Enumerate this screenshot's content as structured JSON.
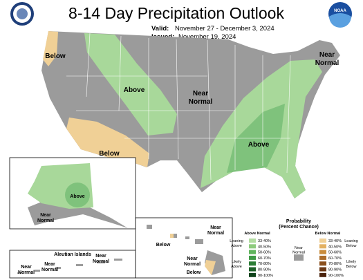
{
  "header": {
    "title": "8-14 Day Precipitation Outlook",
    "valid_label": "Valid:",
    "valid": "November 27 - December 3, 2024",
    "issued_label": "Issued:",
    "issued": "November 19, 2024",
    "logo_right": "NOAA"
  },
  "conus": {
    "labels": [
      {
        "lines": [
          "Below"
        ]
      },
      {
        "lines": [
          "Above"
        ]
      },
      {
        "lines": [
          "Near",
          "Normal"
        ]
      },
      {
        "lines": [
          "Near",
          "Normal"
        ]
      },
      {
        "lines": [
          "Above"
        ]
      },
      {
        "lines": [
          "Below"
        ]
      }
    ]
  },
  "alaska": {
    "labels": [
      {
        "lines": [
          "Above"
        ]
      },
      {
        "lines": [
          "Near",
          "Normal"
        ]
      }
    ]
  },
  "aleutians": {
    "title": "Aleutian Islands",
    "labels": [
      {
        "lines": [
          "Near",
          "Normal"
        ]
      },
      {
        "lines": [
          "Near",
          "Normal"
        ]
      },
      {
        "lines": [
          "Near",
          "Normal"
        ]
      }
    ]
  },
  "hawaii": {
    "labels": [
      {
        "lines": [
          "Near",
          "Normal"
        ]
      },
      {
        "lines": [
          "Below"
        ]
      },
      {
        "lines": [
          "Near",
          "Normal"
        ]
      },
      {
        "lines": [
          "Below"
        ]
      }
    ]
  },
  "legend": {
    "title": [
      "Probability",
      "(Percent Chance)"
    ],
    "above_heading": "Above Normal",
    "below_heading": "Below Normal",
    "near": [
      "Near",
      "Normal"
    ],
    "near_color": "#9b9b9b",
    "leaning_above": [
      "Leaning",
      "Above"
    ],
    "likely_above": [
      "Likely",
      "Above"
    ],
    "leaning_below": [
      "Leaning",
      "Below"
    ],
    "likely_below": [
      "Likely",
      "Below"
    ],
    "levels": [
      "33-40%",
      "40-50%",
      "50-60%",
      "60-70%",
      "70-80%",
      "80-90%",
      "90-100%"
    ],
    "above_colors": [
      "#b3dda2",
      "#8ecb7e",
      "#5fb45c",
      "#3f9a46",
      "#2c7d36",
      "#1d6028",
      "#0e421a"
    ],
    "below_colors": [
      "#f0d096",
      "#e3b163",
      "#c98c3c",
      "#ab6c2a",
      "#8a4f1d",
      "#6a3714",
      "#4a220b"
    ]
  }
}
